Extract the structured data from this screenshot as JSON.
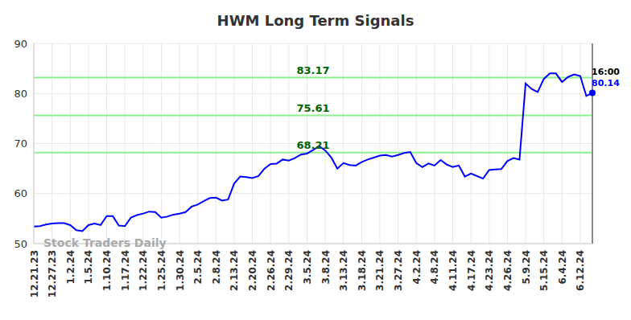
{
  "chart_data": {
    "type": "line",
    "title": "HWM Long Term Signals",
    "watermark": "Stock Traders Daily",
    "last_label": "16:00",
    "color": "#0000ff",
    "categories": [
      "12.21.23",
      null,
      null,
      "12.27.23",
      null,
      null,
      "1.2.24",
      null,
      null,
      "1.5.24",
      null,
      null,
      "1.10.24",
      null,
      null,
      "1.17.24",
      null,
      null,
      "1.22.24",
      null,
      null,
      "1.25.24",
      null,
      null,
      "1.30.24",
      null,
      null,
      "2.5.24",
      null,
      null,
      "2.8.24",
      null,
      null,
      "2.13.24",
      null,
      null,
      "2.20.24",
      null,
      null,
      "2.26.24",
      null,
      null,
      "2.29.24",
      null,
      null,
      "3.5.24",
      null,
      null,
      "3.8.24",
      null,
      null,
      "3.13.24",
      null,
      null,
      "3.18.24",
      null,
      null,
      "3.21.24",
      null,
      null,
      "3.27.24",
      null,
      null,
      "4.2.24",
      null,
      null,
      "4.8.24",
      null,
      null,
      "4.11.24",
      null,
      null,
      "4.17.24",
      null,
      null,
      "4.23.24",
      null,
      null,
      "4.26.24",
      null,
      null,
      "5.9.24",
      null,
      null,
      "5.15.24",
      null,
      null,
      "6.4.24",
      null,
      null,
      "6.12.24",
      null,
      null
    ],
    "values": [
      53.4,
      53.5,
      53.8,
      54.0,
      54.1,
      54.1,
      53.7,
      52.7,
      52.5,
      53.7,
      54.0,
      53.7,
      55.5,
      55.5,
      53.6,
      53.5,
      55.2,
      55.7,
      56.0,
      56.4,
      56.3,
      55.2,
      55.4,
      55.8,
      56.0,
      56.3,
      57.4,
      57.8,
      58.5,
      59.1,
      59.2,
      58.6,
      58.8,
      62.0,
      63.4,
      63.3,
      63.1,
      63.5,
      65.0,
      65.9,
      66.0,
      66.8,
      66.6,
      67.1,
      67.8,
      68.0,
      68.7,
      69.5,
      68.6,
      67.2,
      65.0,
      66.1,
      65.7,
      65.6,
      66.3,
      66.8,
      67.2,
      67.6,
      67.7,
      67.4,
      67.7,
      68.1,
      68.3,
      66.1,
      65.3,
      66.0,
      65.6,
      66.7,
      65.8,
      65.3,
      65.6,
      63.4,
      64.0,
      63.5,
      63.0,
      64.7,
      64.8,
      64.9,
      66.5,
      67.1,
      66.8,
      82.0,
      80.9,
      80.3,
      82.9,
      84.0,
      84.0,
      82.3,
      83.3,
      83.8,
      83.5,
      79.5,
      80.14
    ],
    "levels": [
      83.17,
      75.61,
      68.21
    ],
    "ylim": [
      50,
      90
    ],
    "yticks": [
      50,
      60,
      70,
      80,
      90
    ],
    "grid": true
  }
}
